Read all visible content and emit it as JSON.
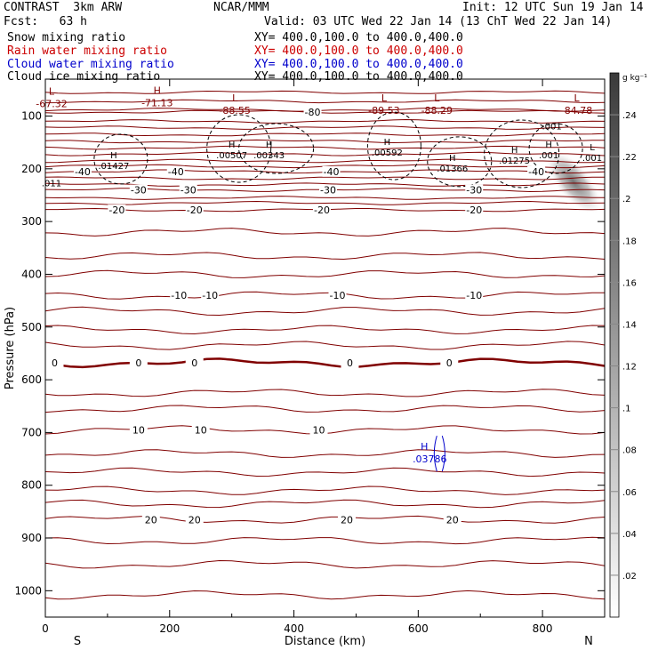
{
  "header": {
    "left_title": "CONTRAST  3km ARW",
    "center_title": "NCAR/MMM",
    "init": "Init: 12 UTC Sun 19 Jan 14",
    "fcst": "Fcst:   63 h",
    "valid": "Valid: 03 UTC Wed 22 Jan 14 (13 ChT Wed 22 Jan 14)",
    "legend": [
      {
        "name": "Snow mixing ratio",
        "xy": "XY= 400.0,100.0 to 400.0,400.0",
        "color": "#000000"
      },
      {
        "name": "Rain water mixing ratio",
        "xy": "XY= 400.0,100.0 to 400.0,400.0",
        "color": "#cc0000"
      },
      {
        "name": "Cloud water mixing ratio",
        "xy": "XY= 400.0,100.0 to 400.0,400.0",
        "color": "#0000cc"
      },
      {
        "name": "Cloud ice mixing ratio",
        "xy": "XY= 400.0,100.0 to 400.0,400.0",
        "color": "#000000"
      }
    ]
  },
  "chart_data": {
    "type": "contour-cross-section",
    "xlabel": "Distance (km)",
    "ylabel": "Pressure (hPa)",
    "xlim": [
      0,
      900
    ],
    "ylim": [
      1050,
      30
    ],
    "x_ticks": [
      0,
      200,
      400,
      600,
      800
    ],
    "x_tick_labels": [
      "0",
      "200",
      "400",
      "600",
      "800"
    ],
    "y_ticks": [
      100,
      200,
      300,
      400,
      500,
      600,
      700,
      800,
      900,
      1000
    ],
    "y_tick_labels": [
      "100",
      "200",
      "300",
      "400",
      "500",
      "600",
      "700",
      "800",
      "900",
      "1000"
    ],
    "direction_labels": [
      "S",
      "N"
    ],
    "colorbar": {
      "unit_label": "g kg⁻¹",
      "ticks": [
        ".02",
        ".04",
        ".06",
        ".08",
        ".1",
        ".12",
        ".14",
        ".16",
        ".18",
        ".2",
        ".22",
        ".24"
      ],
      "range": [
        0,
        0.26
      ]
    },
    "temperature_contours": {
      "color": "#800000",
      "levels": [
        {
          "p": 92,
          "labels": [
            {
              "x": 430,
              "text": "-80"
            }
          ]
        },
        {
          "p": 205,
          "labels": [
            {
              "x": 60,
              "text": "-40"
            },
            {
              "x": 210,
              "text": "-40"
            },
            {
              "x": 460,
              "text": "-40"
            },
            {
              "x": 790,
              "text": "-40"
            }
          ]
        },
        {
          "p": 240,
          "labels": [
            {
              "x": 150,
              "text": "-30"
            },
            {
              "x": 230,
              "text": "-30"
            },
            {
              "x": 455,
              "text": "-30"
            },
            {
              "x": 690,
              "text": "-30"
            }
          ]
        },
        {
          "p": 278,
          "labels": [
            {
              "x": 115,
              "text": "-20"
            },
            {
              "x": 240,
              "text": "-20"
            },
            {
              "x": 445,
              "text": "-20"
            },
            {
              "x": 690,
              "text": "-20"
            }
          ]
        },
        {
          "p": 440,
          "labels": [
            {
              "x": 215,
              "text": "-10"
            },
            {
              "x": 265,
              "text": "-10"
            },
            {
              "x": 470,
              "text": "-10"
            },
            {
              "x": 690,
              "text": "-10"
            }
          ]
        },
        {
          "p": 568,
          "bold": true,
          "labels": [
            {
              "x": 15,
              "text": "0"
            },
            {
              "x": 150,
              "text": "0"
            },
            {
              "x": 240,
              "text": "0"
            },
            {
              "x": 490,
              "text": "0"
            },
            {
              "x": 650,
              "text": "0"
            }
          ]
        },
        {
          "p": 695,
          "labels": [
            {
              "x": 150,
              "text": "10"
            },
            {
              "x": 250,
              "text": "10"
            },
            {
              "x": 440,
              "text": "10"
            }
          ]
        },
        {
          "p": 865,
          "labels": [
            {
              "x": 170,
              "text": "20"
            },
            {
              "x": 240,
              "text": "20"
            },
            {
              "x": 485,
              "text": "20"
            },
            {
              "x": 655,
              "text": "20"
            }
          ]
        }
      ],
      "extra_line_pressures": [
        55,
        72,
        88,
        110,
        122,
        135,
        148,
        160,
        172,
        185,
        195,
        218,
        230,
        255,
        265,
        320,
        365,
        400,
        470,
        505,
        535,
        625,
        655,
        740,
        775,
        810,
        835,
        905,
        950,
        1008
      ]
    },
    "extremes": [
      {
        "kind": "L",
        "x": 10,
        "p": 70,
        "value": "-67.32"
      },
      {
        "kind": "H",
        "x": 180,
        "p": 68,
        "value": "-71.13"
      },
      {
        "kind": "L",
        "x": 305,
        "p": 82,
        "value": "-88.55"
      },
      {
        "kind": "L",
        "x": 545,
        "p": 82,
        "value": "-89.53"
      },
      {
        "kind": "L",
        "x": 630,
        "p": 82,
        "value": "-88.29"
      },
      {
        "kind": "L",
        "x": 855,
        "p": 82,
        "value": "-84.78"
      }
    ],
    "ice_contours": {
      "color": "#000000",
      "labels": [
        {
          "kind": "H",
          "x": 110,
          "p": 190,
          "value": ".01427"
        },
        {
          "kind": "H",
          "x": 300,
          "p": 170,
          "value": ".00507"
        },
        {
          "kind": "H",
          "x": 360,
          "p": 170,
          "value": ".00343"
        },
        {
          "kind": "H",
          "x": 550,
          "p": 165,
          "value": ".00592"
        },
        {
          "kind": "H",
          "x": 655,
          "p": 195,
          "value": ".01366"
        },
        {
          "kind": "H",
          "x": 755,
          "p": 180,
          "value": ".01275"
        },
        {
          "kind": "H",
          "x": 810,
          "p": 170,
          "value": ".001"
        },
        {
          "kind": "L",
          "x": 880,
          "p": 175,
          "value": ".001"
        },
        {
          "kind": "",
          "x": 815,
          "p": 115,
          "value": ".001"
        },
        {
          "kind": "",
          "x": 10,
          "p": 223,
          "value": ".011"
        }
      ]
    },
    "cloud_water": {
      "color": "#0000cc",
      "kind": "H",
      "x": 610,
      "p": 740,
      "value": ".03786"
    },
    "snow_plume": {
      "x_range": [
        800,
        900
      ],
      "p_range": [
        150,
        300
      ],
      "max": 0.2
    }
  }
}
